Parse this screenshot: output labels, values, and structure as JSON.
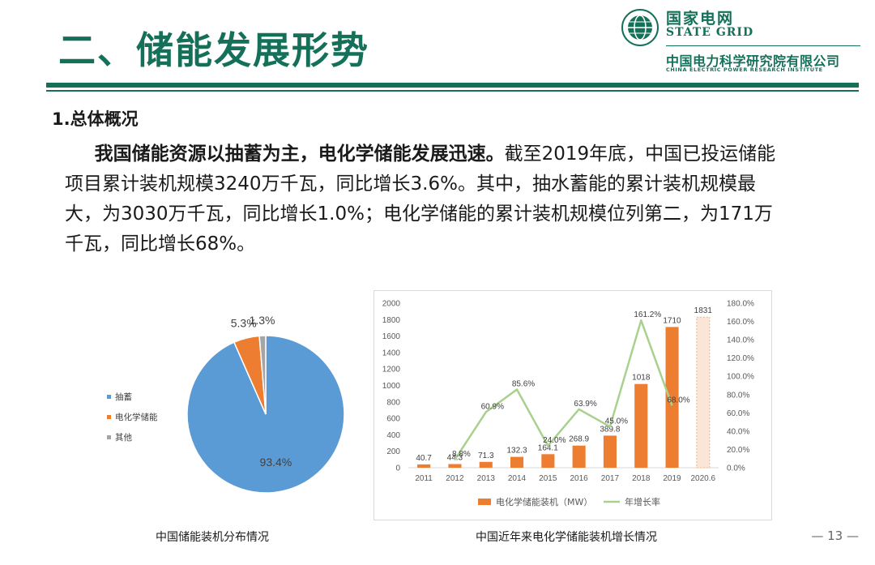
{
  "header": {
    "title": "二、储能发展形势",
    "logo_cn": "国家电网",
    "logo_en": "STATE GRID",
    "institute_cn": "中国电力科学研究院有限公司",
    "institute_en": "CHINA ELECTRIC POWER RESEARCH INSTITUTE"
  },
  "section_heading": "1.总体概况",
  "paragraph": {
    "lead": "我国储能资源以抽蓄为主，电化学储能发展迅速。",
    "body": "截至2019年底，中国已投运储能项目累计装机规模3240万千瓦，同比增长3.6%。其中，抽水蓄能的累计装机规模最大，为3030万千瓦，同比增长1.0%；电化学储能的累计装机规模位列第二，为171万千瓦，同比增长68%。"
  },
  "captions": {
    "pie": "中国储能装机分布情况",
    "bar": "中国近年来电化学储能装机增长情况"
  },
  "page_number": "— 13 —",
  "chart_data": [
    {
      "type": "pie",
      "title": "",
      "slices": [
        {
          "name": "抽蓄",
          "value": 93.4,
          "label": "93.4%",
          "color": "#5b9bd5"
        },
        {
          "name": "电化学储能",
          "value": 5.3,
          "label": "5.3%",
          "color": "#ed7d31"
        },
        {
          "name": "其他",
          "value": 1.3,
          "label": "1.3%",
          "color": "#a5a5a5"
        }
      ],
      "legend_position": "left"
    },
    {
      "type": "bar",
      "title": "",
      "categories": [
        "2011",
        "2012",
        "2013",
        "2014",
        "2015",
        "2016",
        "2017",
        "2018",
        "2019",
        "2020.6"
      ],
      "series": [
        {
          "name": "电化学储能装机（MW）",
          "kind": "bar",
          "axis": "left",
          "color": "#ed7d31",
          "values": [
            40.7,
            44.3,
            71.3,
            132.3,
            164.1,
            268.9,
            389.8,
            1018,
            1710,
            1831
          ],
          "labels": [
            "40.7",
            "44.3",
            "71.3",
            "132.3",
            "164.1",
            "268.9",
            "389.8",
            "1018",
            "1710",
            "1831"
          ],
          "highlight_last": {
            "fill": "#fbe5d6",
            "stroke": "#f4b183"
          }
        },
        {
          "name": "年增长率",
          "kind": "line",
          "axis": "right",
          "color": "#a9d18e",
          "values": [
            null,
            8.8,
            60.9,
            85.6,
            24.0,
            63.9,
            45.0,
            161.2,
            68.0,
            null
          ],
          "labels": [
            "",
            "8.8%",
            "60.9%",
            "85.6%",
            "24.0%",
            "63.9%",
            "45.0%",
            "161.2%",
            "68.0%",
            ""
          ]
        }
      ],
      "y_left": {
        "min": 0,
        "max": 2000,
        "step": 200,
        "ticks": [
          "0",
          "200",
          "400",
          "600",
          "800",
          "1000",
          "1200",
          "1400",
          "1600",
          "1800",
          "2000"
        ]
      },
      "y_right": {
        "min": 0,
        "max": 180,
        "step": 20,
        "ticks": [
          "0.0%",
          "20.0%",
          "40.0%",
          "60.0%",
          "80.0%",
          "100.0%",
          "120.0%",
          "140.0%",
          "160.0%",
          "180.0%"
        ]
      },
      "grid": false,
      "legend_position": "bottom"
    }
  ]
}
